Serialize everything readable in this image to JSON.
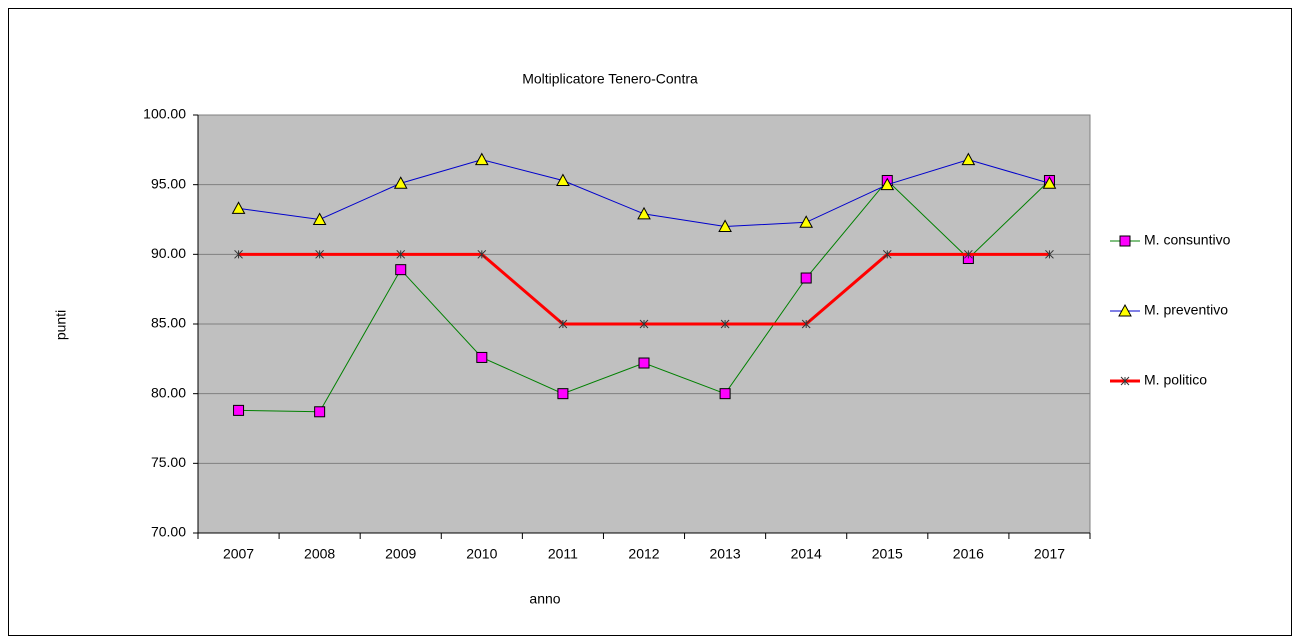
{
  "chart_data": {
    "type": "line",
    "title": "Moltiplicatore Tenero-Contra",
    "x_label": "anno",
    "y_label": "punti",
    "categories": [
      "2007",
      "2008",
      "2009",
      "2010",
      "2011",
      "2012",
      "2013",
      "2014",
      "2015",
      "2016",
      "2017"
    ],
    "series": [
      {
        "name": "M. consuntivo",
        "color": "#008000",
        "marker": "square",
        "marker_color": "#ff00ff",
        "values": [
          78.8,
          78.7,
          88.9,
          82.6,
          80.0,
          82.2,
          80.0,
          88.3,
          95.3,
          89.7,
          95.3
        ]
      },
      {
        "name": "M. preventivo",
        "color": "#0000cc",
        "marker": "triangle",
        "marker_color": "#ffff00",
        "values": [
          93.3,
          92.5,
          95.1,
          96.8,
          95.3,
          92.9,
          92.0,
          92.3,
          95.0,
          96.8,
          95.1
        ]
      },
      {
        "name": "M. politico",
        "color": "#ff0000",
        "marker": "x",
        "marker_color": "#333333",
        "values": [
          90,
          90,
          90,
          90,
          85,
          85,
          85,
          85,
          90,
          90,
          90
        ]
      }
    ],
    "ylim": [
      70,
      100
    ],
    "yticks": [
      {
        "value": 70,
        "label": "70.00"
      },
      {
        "value": 75,
        "label": "75.00"
      },
      {
        "value": 80,
        "label": "80.00"
      },
      {
        "value": 85,
        "label": "85.00"
      },
      {
        "value": 90,
        "label": "90.00"
      },
      {
        "value": 95,
        "label": "95.00"
      },
      {
        "value": 100,
        "label": "100.00"
      }
    ],
    "grid": true,
    "plot_background": "#c0c0c0",
    "legend": "right"
  }
}
